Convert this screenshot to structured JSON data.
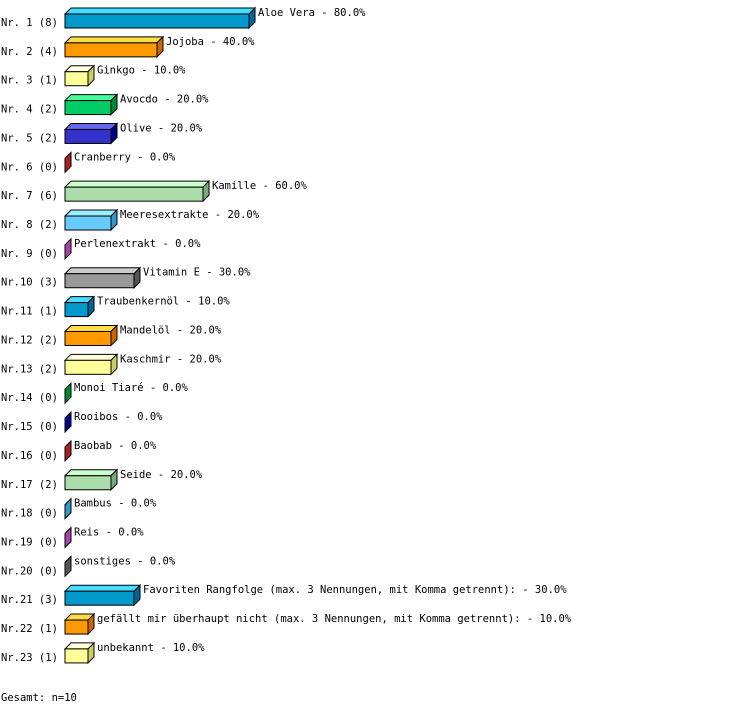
{
  "chart_data": {
    "type": "bar",
    "orientation": "horizontal",
    "style": "3d",
    "xlim": [
      0,
      100
    ],
    "categories": [
      "Aloe Vera",
      "Jojoba",
      "Ginkgo",
      "Avocdo",
      "Olive",
      "Cranberry",
      "Kamille",
      "Meeresextrakte",
      "Perlenextrakt",
      "Vitamin E",
      "Traubenkernöl",
      "Mandelöl",
      "Kaschmir",
      "Monoi Tiaré",
      "Rooibos",
      "Baobab",
      "Seide",
      "Bambus",
      "Reis",
      "sonstiges",
      "Favoriten Rangfolge (max. 3 Nennungen, mit Komma getrennt):",
      "gefällt mir überhaupt nicht (max. 3 Nennungen, mit Komma getrennt):",
      "unbekannt"
    ],
    "row_labels": [
      "Nr. 1 (8)",
      "Nr. 2 (4)",
      "Nr. 3 (1)",
      "Nr. 4 (2)",
      "Nr. 5 (2)",
      "Nr. 6 (0)",
      "Nr. 7 (6)",
      "Nr. 8 (2)",
      "Nr. 9 (0)",
      "Nr.10 (3)",
      "Nr.11 (1)",
      "Nr.12 (2)",
      "Nr.13 (2)",
      "Nr.14 (0)",
      "Nr.15 (0)",
      "Nr.16 (0)",
      "Nr.17 (2)",
      "Nr.18 (0)",
      "Nr.19 (0)",
      "Nr.20 (0)",
      "Nr.21 (3)",
      "Nr.22 (1)",
      "Nr.23 (1)"
    ],
    "counts": [
      8,
      4,
      1,
      2,
      2,
      0,
      6,
      2,
      0,
      3,
      1,
      2,
      2,
      0,
      0,
      0,
      2,
      0,
      0,
      0,
      3,
      1,
      1
    ],
    "values": [
      80,
      40,
      10,
      20,
      20,
      0,
      60,
      20,
      0,
      30,
      10,
      20,
      20,
      0,
      0,
      0,
      20,
      0,
      0,
      0,
      30,
      10,
      10
    ],
    "value_labels": [
      "80.0%",
      "40.0%",
      "10.0%",
      "20.0%",
      "20.0%",
      "0.0%",
      "60.0%",
      "20.0%",
      "0.0%",
      "30.0%",
      "10.0%",
      "20.0%",
      "20.0%",
      "0.0%",
      "0.0%",
      "0.0%",
      "20.0%",
      "0.0%",
      "0.0%",
      "0.0%",
      "30.0%",
      "10.0%",
      "10.0%"
    ],
    "palette": [
      {
        "front": "#0099cc",
        "top": "#44ddff",
        "side": "#006699"
      },
      {
        "front": "#ff9900",
        "top": "#ffdd44",
        "side": "#cc6600"
      },
      {
        "front": "#ffff99",
        "top": "#ffffdd",
        "side": "#cccc66"
      },
      {
        "front": "#00cc66",
        "top": "#44ff99",
        "side": "#008833"
      },
      {
        "front": "#3333cc",
        "top": "#6666ee",
        "side": "#000088"
      },
      {
        "front": "#dd3333",
        "top": "#ff6666",
        "side": "#aa2222"
      },
      {
        "front": "#aaddaa",
        "top": "#ccffcc",
        "side": "#77aa77"
      },
      {
        "front": "#66ccff",
        "top": "#99eeff",
        "side": "#3399cc"
      },
      {
        "front": "#cc66cc",
        "top": "#ee99ee",
        "side": "#aa44aa"
      },
      {
        "front": "#999999",
        "top": "#cccccc",
        "side": "#555555"
      }
    ]
  },
  "footer": {
    "total": "Gesamt: n=10"
  }
}
